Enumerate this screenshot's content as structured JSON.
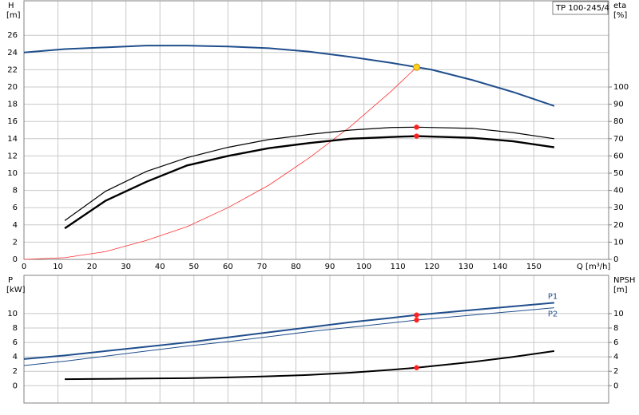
{
  "chart_data": [
    {
      "type": "line",
      "title": "TP 100-245/4",
      "ylabel": "H",
      "yunit": "[m]",
      "y2label": "eta",
      "y2unit": "[%]",
      "xlabel": "Q [m³/h]",
      "xlim": [
        0,
        172
      ],
      "xticks": [
        0,
        10,
        20,
        30,
        40,
        50,
        60,
        70,
        80,
        90,
        100,
        110,
        120,
        130,
        140,
        150
      ],
      "ylim": [
        0,
        30
      ],
      "yticks": [
        0,
        2,
        4,
        6,
        8,
        10,
        12,
        14,
        16,
        18,
        20,
        22,
        24,
        26
      ],
      "y2lim": [
        0,
        150
      ],
      "y2ticks": [
        0,
        10,
        20,
        30,
        40,
        50,
        60,
        70,
        80,
        90,
        100
      ],
      "grid": true,
      "series": [
        {
          "color": "#1f4e8c",
          "width": 2,
          "x": [
            0,
            12,
            24,
            36,
            48,
            60,
            72,
            84,
            96,
            108,
            115.5,
            120,
            132,
            144,
            156
          ],
          "values": [
            24,
            24.4,
            24.6,
            24.8,
            24.8,
            24.7,
            24.5,
            24.1,
            23.5,
            22.8,
            22.3,
            22,
            20.8,
            19.4,
            17.8
          ]
        },
        {
          "color": "#ff3030",
          "width": 0.8,
          "x": [
            0,
            12,
            24,
            36,
            48,
            60,
            72,
            84,
            96,
            108,
            115.5
          ],
          "values": [
            0,
            0.2,
            0.9,
            2.2,
            3.8,
            6,
            8.6,
            11.8,
            15.4,
            19.5,
            22.3
          ]
        },
        {
          "color": "#000000",
          "width": 1.2,
          "axis": "y2",
          "x": [
            12,
            24,
            36,
            48,
            60,
            72,
            84,
            96,
            108,
            115.5,
            132,
            144,
            156
          ],
          "values": [
            22.5,
            39.5,
            51,
            59,
            65,
            69.5,
            72.5,
            75,
            76.5,
            76.7,
            76,
            73.5,
            70
          ]
        },
        {
          "color": "#000000",
          "width": 2.4,
          "axis": "y2",
          "x": [
            12,
            24,
            36,
            48,
            60,
            72,
            84,
            96,
            108,
            115.5,
            132,
            144,
            156
          ],
          "values": [
            18,
            34,
            45,
            54.5,
            60,
            64.5,
            67.5,
            70,
            71,
            71.5,
            70.5,
            68.5,
            65
          ]
        }
      ],
      "markers": [
        {
          "x": 115.5,
          "y": 22.3,
          "color": "#ffd21f"
        },
        {
          "x": 115.5,
          "y": 76.7,
          "color": "#ff2020",
          "axis": "y2"
        },
        {
          "x": 115.5,
          "y": 71.5,
          "color": "#ff2020",
          "axis": "y2"
        }
      ]
    },
    {
      "type": "line",
      "ylabel": "P",
      "yunit": "[kW]",
      "y2label": "NPSH",
      "y2unit": "[m]",
      "xlim": [
        0,
        172
      ],
      "xticks": [
        0,
        10,
        20,
        30,
        40,
        50,
        60,
        70,
        80,
        90,
        100,
        110,
        120,
        130,
        140,
        150
      ],
      "ylim": [
        -2.4,
        15.3
      ],
      "yticks": [
        0,
        2,
        4,
        6,
        8,
        10
      ],
      "y2lim": [
        -2.4,
        15.3
      ],
      "y2ticks": [
        0,
        2,
        4,
        6,
        8,
        10
      ],
      "grid": true,
      "series": [
        {
          "name": "P1",
          "color": "#1f4e8c",
          "width": 2,
          "x": [
            0,
            12,
            24,
            36,
            48,
            60,
            72,
            84,
            96,
            108,
            115.5,
            132,
            144,
            156
          ],
          "values": [
            3.7,
            4.2,
            4.8,
            5.4,
            6,
            6.7,
            7.4,
            8.1,
            8.8,
            9.4,
            9.8,
            10.5,
            11,
            11.5
          ]
        },
        {
          "name": "P2",
          "color": "#1f4e8c",
          "width": 1,
          "x": [
            0,
            12,
            24,
            36,
            48,
            60,
            72,
            84,
            96,
            108,
            115.5,
            132,
            144,
            156
          ],
          "values": [
            2.8,
            3.4,
            4.1,
            4.8,
            5.5,
            6.1,
            6.8,
            7.5,
            8.1,
            8.7,
            9.1,
            9.8,
            10.3,
            10.8
          ]
        },
        {
          "color": "#000000",
          "width": 2,
          "axis": "y2",
          "x": [
            12,
            24,
            36,
            48,
            60,
            72,
            84,
            96,
            108,
            115.5,
            132,
            144,
            156
          ],
          "values": [
            0.9,
            0.95,
            1,
            1.05,
            1.15,
            1.3,
            1.5,
            1.8,
            2.2,
            2.5,
            3.3,
            4,
            4.8
          ]
        }
      ],
      "markers": [
        {
          "x": 115.5,
          "y": 9.8,
          "color": "#ff2020"
        },
        {
          "x": 115.5,
          "y": 9.1,
          "color": "#ff2020"
        },
        {
          "x": 115.5,
          "y": 2.5,
          "color": "#ff2020",
          "axis": "y2"
        }
      ]
    }
  ]
}
